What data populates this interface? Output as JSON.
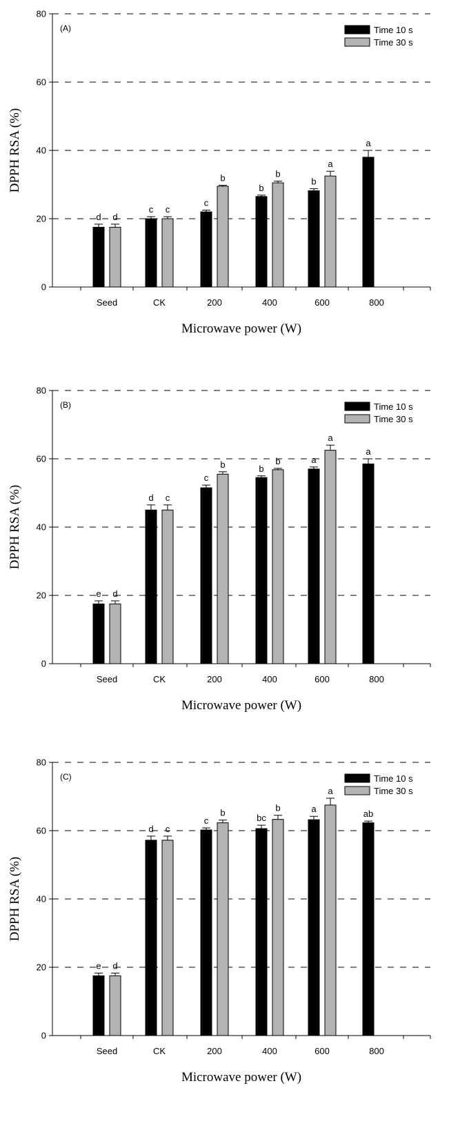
{
  "chart_data": [
    {
      "type": "bar",
      "panel_label": "(A)",
      "xlabel": "Microwave power (W)",
      "ylabel": "DPPH RSA (%)",
      "ylim": [
        0,
        80
      ],
      "yticks": [
        0,
        20,
        40,
        60,
        80
      ],
      "grid": "dashed-horizontal",
      "legend_position": "top-right",
      "categories": [
        "Seed",
        "CK",
        "200",
        "400",
        "600",
        "800"
      ],
      "series": [
        {
          "name": "Time 10 s",
          "color": "#000000",
          "values": [
            17.5,
            20.0,
            22.0,
            26.5,
            28.2,
            38.0
          ],
          "errors": [
            0.9,
            0.6,
            0.5,
            0.4,
            0.6,
            2.0
          ],
          "letters": [
            "d",
            "c",
            "c",
            "b",
            "b",
            "a"
          ]
        },
        {
          "name": "Time 30 s",
          "color": "#b3b3b3",
          "values": [
            17.5,
            20.0,
            29.5,
            30.5,
            32.5,
            null
          ],
          "errors": [
            0.9,
            0.6,
            0.3,
            0.5,
            1.4,
            null
          ],
          "letters": [
            "d",
            "c",
            "b",
            "b",
            "a",
            null
          ]
        }
      ]
    },
    {
      "type": "bar",
      "panel_label": "(B)",
      "xlabel": "Microwave power (W)",
      "ylabel": "DPPH RSA (%)",
      "ylim": [
        0,
        80
      ],
      "yticks": [
        0,
        20,
        40,
        60,
        80
      ],
      "grid": "dashed-horizontal",
      "legend_position": "top-right",
      "categories": [
        "Seed",
        "CK",
        "200",
        "400",
        "600",
        "800"
      ],
      "series": [
        {
          "name": "Time 10 s",
          "color": "#000000",
          "values": [
            17.5,
            45.0,
            51.5,
            54.5,
            57.0,
            58.5
          ],
          "errors": [
            0.9,
            1.5,
            0.8,
            0.5,
            0.6,
            1.5
          ],
          "letters": [
            "e",
            "d",
            "c",
            "b",
            "a",
            "a"
          ]
        },
        {
          "name": "Time 30 s",
          "color": "#b3b3b3",
          "values": [
            17.5,
            45.0,
            55.5,
            56.8,
            62.5,
            null
          ],
          "errors": [
            0.9,
            1.5,
            0.7,
            0.4,
            1.5,
            null
          ],
          "letters": [
            "d",
            "c",
            "b",
            "b",
            "a",
            null
          ]
        }
      ]
    },
    {
      "type": "bar",
      "panel_label": "(C)",
      "xlabel": "Microwave power (W)",
      "ylabel": "DPPH RSA (%)",
      "ylim": [
        0,
        80
      ],
      "yticks": [
        0,
        20,
        40,
        60,
        80
      ],
      "grid": "dashed-horizontal",
      "legend_position": "top-right",
      "categories": [
        "Seed",
        "CK",
        "200",
        "400",
        "600",
        "800"
      ],
      "series": [
        {
          "name": "Time 10 s",
          "color": "#000000",
          "values": [
            17.5,
            57.2,
            60.2,
            60.6,
            63.2,
            62.3
          ],
          "errors": [
            0.8,
            1.2,
            0.6,
            1.0,
            1.0,
            0.5
          ],
          "letters": [
            "e",
            "d",
            "c",
            "bc",
            "a",
            "ab"
          ]
        },
        {
          "name": "Time 30 s",
          "color": "#b3b3b3",
          "values": [
            17.5,
            57.2,
            62.3,
            63.3,
            67.5,
            null
          ],
          "errors": [
            0.8,
            1.2,
            0.8,
            1.2,
            2.0,
            null
          ],
          "letters": [
            "d",
            "c",
            "b",
            "b",
            "a",
            null
          ]
        }
      ]
    }
  ]
}
